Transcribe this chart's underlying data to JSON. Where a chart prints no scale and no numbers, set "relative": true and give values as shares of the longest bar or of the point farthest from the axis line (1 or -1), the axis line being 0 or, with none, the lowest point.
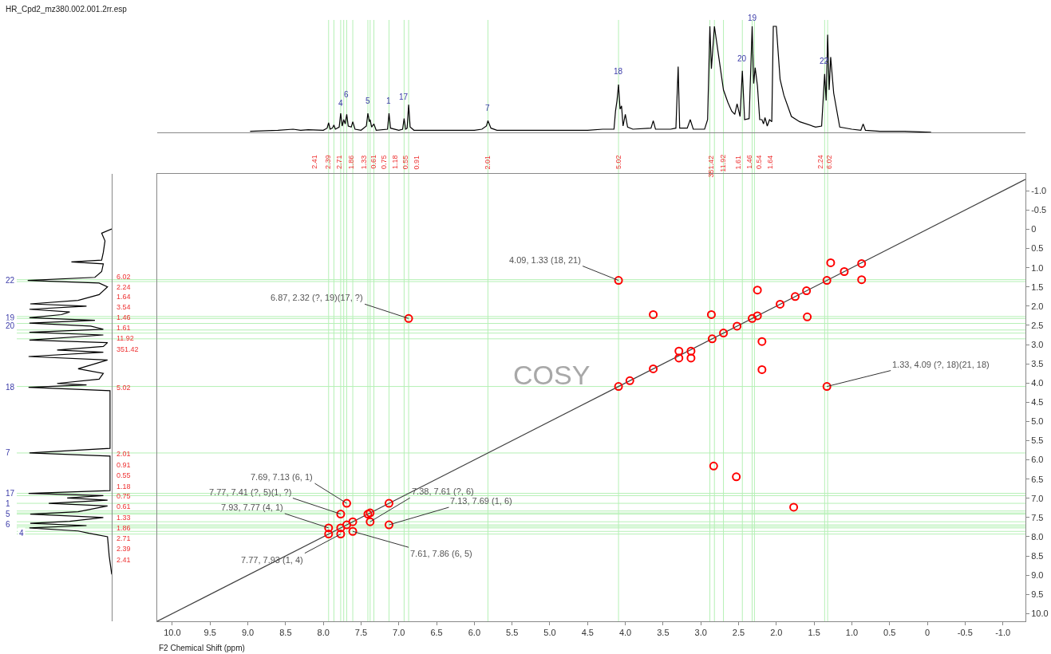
{
  "chart_data": [
    {
      "type": "line",
      "title": "HR_Cpd2_mz380.002.001.2rr.esp",
      "relative": true,
      "xlim": [
        10.2,
        -1.3
      ],
      "x": [
        8.97,
        8.6,
        8.4,
        8.3,
        8.2,
        8.0,
        7.95,
        7.93,
        7.91,
        7.88,
        7.86,
        7.84,
        7.79,
        7.77,
        7.75,
        7.73,
        7.71,
        7.69,
        7.67,
        7.63,
        7.61,
        7.58,
        7.5,
        7.43,
        7.41,
        7.39,
        7.38,
        7.36,
        7.33,
        7.3,
        7.15,
        7.13,
        7.11,
        7.0,
        6.95,
        6.93,
        6.91,
        6.89,
        6.87,
        6.85,
        6.8,
        6.0,
        5.9,
        5.84,
        5.82,
        5.78,
        5.7,
        4.5,
        4.3,
        4.15,
        4.13,
        4.11,
        4.09,
        4.07,
        4.05,
        4.03,
        4.0,
        3.97,
        3.9,
        3.66,
        3.63,
        3.6,
        3.4,
        3.33,
        3.3,
        3.28,
        3.18,
        3.14,
        3.1,
        2.95,
        2.91,
        2.88,
        2.86,
        2.82,
        2.76,
        2.7,
        2.64,
        2.59,
        2.55,
        2.52,
        2.48,
        2.45,
        2.42,
        2.36,
        2.32,
        2.3,
        2.28,
        2.25,
        2.22,
        2.19,
        2.17,
        2.15,
        2.12,
        2.09,
        2.06,
        2.04,
        2.0,
        1.95,
        1.9,
        1.8,
        1.69,
        1.48,
        1.4,
        1.36,
        1.34,
        1.32,
        1.3,
        1.28,
        1.24,
        1.16,
        1.0,
        0.88,
        0.85,
        0.82,
        0.63,
        0.3,
        -0.05
      ],
      "values": [
        0.01,
        0.02,
        0.03,
        0.02,
        0.025,
        0.02,
        0.04,
        0.09,
        0.03,
        0.04,
        0.07,
        0.03,
        0.05,
        0.18,
        0.06,
        0.12,
        0.08,
        0.17,
        0.06,
        0.05,
        0.1,
        0.03,
        0.02,
        0.06,
        0.18,
        0.1,
        0.12,
        0.05,
        0.08,
        0.02,
        0.03,
        0.18,
        0.04,
        0.02,
        0.03,
        0.13,
        0.03,
        0.04,
        0.26,
        0.05,
        0.02,
        0.02,
        0.03,
        0.06,
        0.11,
        0.04,
        0.02,
        0.02,
        0.03,
        0.03,
        0.2,
        0.3,
        0.45,
        0.22,
        0.25,
        0.06,
        0.17,
        0.05,
        0.03,
        0.04,
        0.11,
        0.03,
        0.03,
        0.04,
        0.62,
        0.04,
        0.04,
        0.12,
        0.03,
        0.03,
        0.12,
        1.0,
        0.6,
        1.0,
        0.7,
        0.4,
        0.28,
        0.2,
        0.17,
        0.27,
        0.15,
        0.58,
        0.12,
        0.13,
        1.0,
        0.46,
        0.61,
        0.44,
        0.12,
        0.12,
        0.08,
        0.14,
        0.06,
        0.12,
        0.1,
        1.0,
        1.0,
        0.5,
        0.35,
        0.15,
        0.1,
        0.05,
        0.06,
        0.55,
        0.3,
        0.92,
        0.4,
        0.71,
        0.37,
        0.05,
        0.03,
        0.02,
        0.08,
        0.02,
        0.01,
        0.01,
        0.0
      ],
      "color": "#000000",
      "ref_lines": [
        {
          "axis": "x",
          "value": 7.93,
          "color": "#b5f0b5"
        },
        {
          "axis": "x",
          "value": 7.86,
          "color": "#b5f0b5"
        },
        {
          "axis": "x",
          "value": 7.77,
          "color": "#b5f0b5"
        },
        {
          "axis": "x",
          "value": 7.73,
          "color": "#b5f0b5"
        },
        {
          "axis": "x",
          "value": 7.69,
          "color": "#b5f0b5"
        },
        {
          "axis": "x",
          "value": 7.61,
          "color": "#b5f0b5"
        },
        {
          "axis": "x",
          "value": 7.41,
          "color": "#b5f0b5"
        },
        {
          "axis": "x",
          "value": 7.38,
          "color": "#b5f0b5"
        },
        {
          "axis": "x",
          "value": 7.33,
          "color": "#b5f0b5"
        },
        {
          "axis": "x",
          "value": 7.13,
          "color": "#b5f0b5"
        },
        {
          "axis": "x",
          "value": 6.93,
          "color": "#b5f0b5"
        },
        {
          "axis": "x",
          "value": 6.87,
          "color": "#b5f0b5"
        },
        {
          "axis": "x",
          "value": 5.82,
          "color": "#b5f0b5"
        },
        {
          "axis": "x",
          "value": 4.09,
          "color": "#b5f0b5"
        },
        {
          "axis": "x",
          "value": 2.88,
          "color": "#b5f0b5"
        },
        {
          "axis": "x",
          "value": 2.82,
          "color": "#b5f0b5"
        },
        {
          "axis": "x",
          "value": 2.7,
          "color": "#b5f0b5"
        },
        {
          "axis": "x",
          "value": 2.45,
          "color": "#b5f0b5"
        },
        {
          "axis": "x",
          "value": 2.32,
          "color": "#b5f0b5"
        },
        {
          "axis": "x",
          "value": 2.29,
          "color": "#b5f0b5"
        },
        {
          "axis": "x",
          "value": 1.36,
          "color": "#b5f0b5"
        },
        {
          "axis": "x",
          "value": 1.32,
          "color": "#b5f0b5"
        }
      ],
      "annotations": [
        {
          "text": "4",
          "x": 7.77,
          "y": 0.22
        },
        {
          "text": "6",
          "x": 7.69,
          "y": 0.3
        },
        {
          "text": "5",
          "x": 7.41,
          "y": 0.24
        },
        {
          "text": "1",
          "x": 7.13,
          "y": 0.24
        },
        {
          "text": "17",
          "x": 6.93,
          "y": 0.28
        },
        {
          "text": "7",
          "x": 5.82,
          "y": 0.17
        },
        {
          "text": "18",
          "x": 4.09,
          "y": 0.52
        },
        {
          "text": "20",
          "x": 2.45,
          "y": 0.64
        },
        {
          "text": "19",
          "x": 2.32,
          "y": 1.02
        },
        {
          "text": "22",
          "x": 1.36,
          "y": 0.62
        },
        "2.41",
        "2.39",
        "2.71",
        "1.86",
        "1.33",
        "0.61",
        "0.75",
        "1.18",
        "0.55",
        "0.91",
        "2.01",
        "5.02",
        "351.42",
        "11.92",
        "1.61",
        "1.46",
        "0.54",
        "1.64",
        "2.24",
        "6.02"
      ]
    },
    {
      "type": "line",
      "orientation": "horizontal",
      "relative": true,
      "ylim": [
        10.2,
        -1.44
      ],
      "x": [
        -0.01,
        0.1,
        0.3,
        0.6,
        0.8,
        0.85,
        0.9,
        1.1,
        1.25,
        1.33,
        1.4,
        1.5,
        1.7,
        1.85,
        1.94,
        2.0,
        2.08,
        2.15,
        2.22,
        2.3,
        2.37,
        2.44,
        2.52,
        2.6,
        2.68,
        2.75,
        2.88,
        2.95,
        3.05,
        3.14,
        3.2,
        3.31,
        3.4,
        3.5,
        3.63,
        3.75,
        3.9,
        4.01,
        4.05,
        4.11,
        4.2,
        5.0,
        5.7,
        5.82,
        5.9,
        6.8,
        6.87,
        6.93,
        6.99,
        7.05,
        7.13,
        7.2,
        7.35,
        7.41,
        7.5,
        7.6,
        7.65,
        7.71,
        7.77,
        7.85,
        7.91,
        8.0,
        8.5,
        8.98
      ],
      "values": [
        0.0,
        -0.12,
        -0.08,
        -0.1,
        -0.12,
        -0.48,
        -0.1,
        -0.12,
        -0.2,
        -1.0,
        -0.15,
        -0.05,
        -0.15,
        -0.4,
        -0.97,
        -0.3,
        -0.98,
        -0.5,
        -0.6,
        -0.98,
        -0.2,
        -0.98,
        -0.25,
        -0.1,
        -0.98,
        -0.1,
        -0.98,
        -0.05,
        -0.1,
        -0.65,
        -0.1,
        -0.99,
        -0.05,
        -0.2,
        -0.4,
        -0.1,
        -0.15,
        -0.65,
        -0.3,
        -0.99,
        -0.02,
        -0.02,
        -0.02,
        -0.98,
        -0.02,
        -0.02,
        -0.99,
        -0.1,
        -0.53,
        -0.05,
        -0.75,
        -0.05,
        -0.4,
        -0.97,
        -0.1,
        -0.5,
        -0.97,
        -0.3,
        -0.98,
        -0.4,
        -0.27,
        -0.05,
        -0.03,
        0.0
      ],
      "color": "#000000",
      "ref_lines": [
        {
          "axis": "y",
          "value": 1.31,
          "color": "#b5f0b5"
        },
        {
          "axis": "y",
          "value": 1.36,
          "color": "#b5f0b5"
        },
        {
          "axis": "y",
          "value": 2.27,
          "color": "#b5f0b5"
        },
        {
          "axis": "y",
          "value": 2.32,
          "color": "#b5f0b5"
        },
        {
          "axis": "y",
          "value": 2.45,
          "color": "#b5f0b5"
        },
        {
          "axis": "y",
          "value": 2.62,
          "color": "#b5f0b5"
        },
        {
          "axis": "y",
          "value": 2.7,
          "color": "#b5f0b5"
        },
        {
          "axis": "y",
          "value": 2.85,
          "color": "#b5f0b5"
        },
        {
          "axis": "y",
          "value": 4.09,
          "color": "#b5f0b5"
        },
        {
          "axis": "y",
          "value": 5.82,
          "color": "#b5f0b5"
        },
        {
          "axis": "y",
          "value": 6.87,
          "color": "#b5f0b5"
        },
        {
          "axis": "y",
          "value": 6.93,
          "color": "#b5f0b5"
        },
        {
          "axis": "y",
          "value": 7.13,
          "color": "#b5f0b5"
        },
        {
          "axis": "y",
          "value": 7.33,
          "color": "#b5f0b5"
        },
        {
          "axis": "y",
          "value": 7.38,
          "color": "#b5f0b5"
        },
        {
          "axis": "y",
          "value": 7.41,
          "color": "#b5f0b5"
        },
        {
          "axis": "y",
          "value": 7.61,
          "color": "#b5f0b5"
        },
        {
          "axis": "y",
          "value": 7.69,
          "color": "#b5f0b5"
        },
        {
          "axis": "y",
          "value": 7.73,
          "color": "#b5f0b5"
        },
        {
          "axis": "y",
          "value": 7.77,
          "color": "#b5f0b5"
        },
        {
          "axis": "y",
          "value": 7.86,
          "color": "#b5f0b5"
        },
        {
          "axis": "y",
          "value": 7.93,
          "color": "#b5f0b5"
        }
      ],
      "annotations": [
        "22",
        "19",
        "20",
        "18",
        "7",
        "17",
        "1",
        "5",
        "6",
        "4",
        "6.02",
        "2.24",
        "1.64",
        "3.54",
        "1.46",
        "1.61",
        "11.92",
        "351.42",
        "5.02",
        "2.01",
        "0.91",
        "0.55",
        "1.18",
        "0.75",
        "0.61",
        "1.33",
        "1.86",
        "2.71",
        "2.39",
        "2.41"
      ]
    },
    {
      "type": "scatter",
      "xlabel": "F2 Chemical Shift (ppm)",
      "xlim": [
        10.2,
        -1.3
      ],
      "ylim": [
        10.2,
        -1.44
      ],
      "xticks": [
        {
          "value": 10,
          "label": "10.0"
        },
        9.5,
        {
          "value": 9,
          "label": "9.0"
        },
        8.5,
        {
          "value": 8,
          "label": "8.0"
        },
        7.5,
        {
          "value": 7,
          "label": "7.0"
        },
        6.5,
        {
          "value": 6,
          "label": "6.0"
        },
        5.5,
        {
          "value": 5,
          "label": "5.0"
        },
        4.5,
        {
          "value": 4,
          "label": "4.0"
        },
        3.5,
        {
          "value": 3,
          "label": "3.0"
        },
        2.5,
        {
          "value": 2,
          "label": "2.0"
        },
        1.5,
        {
          "value": 1,
          "label": "1.0"
        },
        0.5,
        0,
        -0.5,
        {
          "value": -1,
          "label": "-1.0"
        }
      ],
      "yticks": [
        {
          "value": -1,
          "label": "-1.0"
        },
        -0.5,
        0,
        0.5,
        {
          "value": 1,
          "label": "1.0"
        },
        1.5,
        {
          "value": 2,
          "label": "2.0"
        },
        2.5,
        {
          "value": 3,
          "label": "3.0"
        },
        3.5,
        {
          "value": 4,
          "label": "4.0"
        },
        4.5,
        {
          "value": 5,
          "label": "5.0"
        },
        5.5,
        {
          "value": 6,
          "label": "6.0"
        },
        6.5,
        {
          "value": 7,
          "label": "7.0"
        },
        7.5,
        {
          "value": 8,
          "label": "8.0"
        },
        8.5,
        {
          "value": 9,
          "label": "9.0"
        },
        9.5,
        {
          "value": 10,
          "label": "10.0"
        }
      ],
      "series": [
        {
          "type": "line",
          "color": "#404040",
          "x": [
            10.2,
            -1.3
          ],
          "values": [
            10.2,
            -1.3
          ]
        },
        {
          "type": "scatter",
          "marker": "circle",
          "color": "#ff0000",
          "x": [
            4.09,
            6.87,
            1.33,
            7.69,
            7.77,
            7.93,
            7.38,
            7.13,
            7.77,
            7.61,
            3.63,
            2.86,
            2.19,
            2.19,
            3.29,
            3.13,
            3.29,
            3.13,
            1.28,
            0.87,
            2.25,
            1.59,
            2.83,
            2.53,
            1.77,
            7.93,
            7.77,
            7.69,
            7.61,
            7.41,
            7.38,
            7.13,
            4.09,
            3.94,
            3.63,
            2.85,
            2.7,
            2.52,
            2.32,
            2.25,
            1.95,
            1.75,
            1.6,
            1.33,
            1.1,
            0.87
          ],
          "values": [
            1.33,
            2.32,
            4.09,
            7.13,
            7.41,
            7.77,
            7.61,
            7.69,
            7.93,
            7.86,
            2.22,
            2.22,
            2.92,
            3.65,
            3.17,
            3.17,
            3.35,
            3.35,
            0.87,
            1.31,
            1.58,
            2.28,
            6.16,
            6.44,
            7.23,
            7.93,
            7.77,
            7.69,
            7.61,
            7.41,
            7.38,
            7.13,
            4.09,
            3.94,
            3.63,
            2.85,
            2.7,
            2.52,
            2.32,
            2.25,
            1.95,
            1.75,
            1.6,
            1.33,
            1.1,
            0.89
          ]
        }
      ],
      "ref_lines": [
        {
          "axis": "x",
          "value": 7.93,
          "color": "#b5f0b5"
        },
        {
          "axis": "x",
          "value": 7.86,
          "color": "#b5f0b5"
        },
        {
          "axis": "x",
          "value": 7.77,
          "color": "#b5f0b5"
        },
        {
          "axis": "x",
          "value": 7.73,
          "color": "#b5f0b5"
        },
        {
          "axis": "x",
          "value": 7.69,
          "color": "#b5f0b5"
        },
        {
          "axis": "x",
          "value": 7.61,
          "color": "#b5f0b5"
        },
        {
          "axis": "x",
          "value": 7.41,
          "color": "#b5f0b5"
        },
        {
          "axis": "x",
          "value": 7.38,
          "color": "#b5f0b5"
        },
        {
          "axis": "x",
          "value": 7.33,
          "color": "#b5f0b5"
        },
        {
          "axis": "x",
          "value": 7.13,
          "color": "#b5f0b5"
        },
        {
          "axis": "x",
          "value": 6.93,
          "color": "#b5f0b5"
        },
        {
          "axis": "x",
          "value": 6.87,
          "color": "#b5f0b5"
        },
        {
          "axis": "x",
          "value": 5.82,
          "color": "#b5f0b5"
        },
        {
          "axis": "x",
          "value": 4.09,
          "color": "#b5f0b5"
        },
        {
          "axis": "x",
          "value": 2.88,
          "color": "#b5f0b5"
        },
        {
          "axis": "x",
          "value": 2.82,
          "color": "#b5f0b5"
        },
        {
          "axis": "x",
          "value": 2.7,
          "color": "#b5f0b5"
        },
        {
          "axis": "x",
          "value": 2.45,
          "color": "#b5f0b5"
        },
        {
          "axis": "x",
          "value": 2.32,
          "color": "#b5f0b5"
        },
        {
          "axis": "x",
          "value": 2.29,
          "color": "#b5f0b5"
        },
        {
          "axis": "x",
          "value": 1.36,
          "color": "#b5f0b5"
        },
        {
          "axis": "x",
          "value": 1.32,
          "color": "#b5f0b5"
        },
        {
          "axis": "y",
          "value": 1.31,
          "color": "#b5f0b5"
        },
        {
          "axis": "y",
          "value": 1.36,
          "color": "#b5f0b5"
        },
        {
          "axis": "y",
          "value": 2.27,
          "color": "#b5f0b5"
        },
        {
          "axis": "y",
          "value": 2.32,
          "color": "#b5f0b5"
        },
        {
          "axis": "y",
          "value": 2.45,
          "color": "#b5f0b5"
        },
        {
          "axis": "y",
          "value": 2.62,
          "color": "#b5f0b5"
        },
        {
          "axis": "y",
          "value": 2.7,
          "color": "#b5f0b5"
        },
        {
          "axis": "y",
          "value": 2.85,
          "color": "#b5f0b5"
        },
        {
          "axis": "y",
          "value": 4.09,
          "color": "#b5f0b5"
        },
        {
          "axis": "y",
          "value": 5.82,
          "color": "#b5f0b5"
        },
        {
          "axis": "y",
          "value": 6.87,
          "color": "#b5f0b5"
        },
        {
          "axis": "y",
          "value": 6.93,
          "color": "#b5f0b5"
        },
        {
          "axis": "y",
          "value": 7.13,
          "color": "#b5f0b5"
        },
        {
          "axis": "y",
          "value": 7.33,
          "color": "#b5f0b5"
        },
        {
          "axis": "y",
          "value": 7.38,
          "color": "#b5f0b5"
        },
        {
          "axis": "y",
          "value": 7.41,
          "color": "#b5f0b5"
        },
        {
          "axis": "y",
          "value": 7.61,
          "color": "#b5f0b5"
        },
        {
          "axis": "y",
          "value": 7.69,
          "color": "#b5f0b5"
        },
        {
          "axis": "y",
          "value": 7.73,
          "color": "#b5f0b5"
        },
        {
          "axis": "y",
          "value": 7.77,
          "color": "#b5f0b5"
        },
        {
          "axis": "y",
          "value": 7.86,
          "color": "#b5f0b5"
        },
        {
          "axis": "y",
          "value": 7.93,
          "color": "#b5f0b5"
        }
      ],
      "annotations": [
        {
          "text": "4.09, 1.33 (18, 21)",
          "x": 4.09,
          "y": 1.33
        },
        {
          "text": "6.87, 2.32 (?, 19)(17, ?)",
          "x": 6.87,
          "y": 2.32
        },
        {
          "text": "1.33, 4.09 (?, 18)(21, 18)",
          "x": 1.33,
          "y": 4.09
        },
        {
          "text": "7.69, 7.13 (6, 1)",
          "x": 7.69,
          "y": 7.13
        },
        {
          "text": "7.77, 7.41 (?, 5)(1, ?)",
          "x": 7.77,
          "y": 7.41
        },
        {
          "text": "7.93, 7.77 (4, 1)",
          "x": 7.93,
          "y": 7.77
        },
        {
          "text": "7.38, 7.61 (?, 6)",
          "x": 7.38,
          "y": 7.61
        },
        {
          "text": "7.13, 7.69 (1, 6)",
          "x": 7.13,
          "y": 7.69
        },
        {
          "text": "7.77, 7.93 (1, 4)",
          "x": 7.77,
          "y": 7.93
        },
        {
          "text": "7.61, 7.86 (6, 5)",
          "x": 7.61,
          "y": 7.86
        },
        "COSY"
      ]
    }
  ]
}
